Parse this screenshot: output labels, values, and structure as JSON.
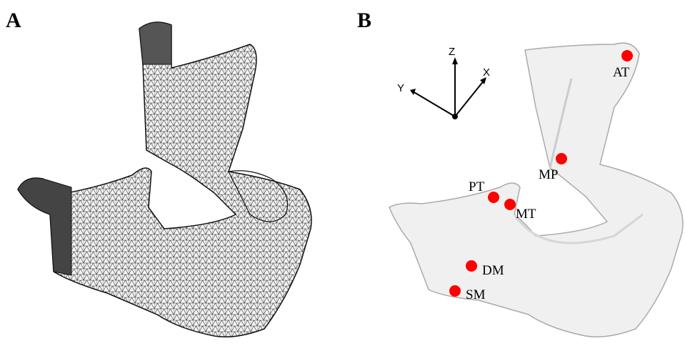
{
  "panels": [
    {
      "label": "A"
    },
    {
      "label": "B",
      "axes": {
        "z": "Z",
        "x": "X",
        "y": "Y"
      },
      "landmarks": [
        {
          "label": "AT"
        },
        {
          "label": "MP"
        },
        {
          "label": "PT"
        },
        {
          "label": "MT"
        },
        {
          "label": "DM"
        },
        {
          "label": "SM"
        }
      ]
    }
  ]
}
